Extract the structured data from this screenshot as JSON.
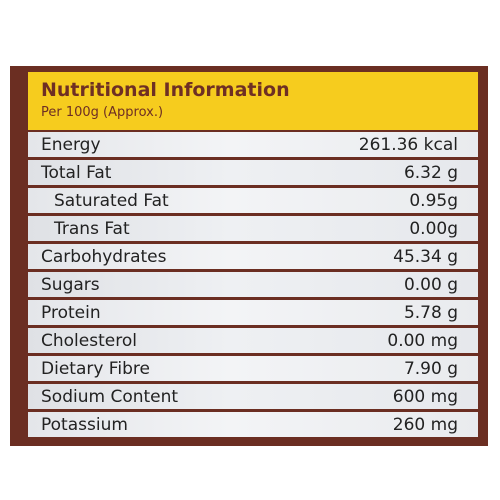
{
  "header": {
    "title": "Nutritional Information",
    "subtitle": "Per 100g (Approx.)"
  },
  "rows": [
    {
      "name": "Energy",
      "value": "261.36 kcal"
    },
    {
      "name": "Total Fat",
      "value": "6.32 g"
    },
    {
      "name": "Saturated Fat",
      "value": "0.95g"
    },
    {
      "name": "Trans Fat",
      "value": "0.00g"
    },
    {
      "name": "Carbohydrates",
      "value": "45.34 g"
    },
    {
      "name": "Sugars",
      "value": "0.00 g"
    },
    {
      "name": "Protein",
      "value": "5.78 g"
    },
    {
      "name": "Cholesterol",
      "value": "0.00 mg"
    },
    {
      "name": "Dietary Fibre",
      "value": "7.90 g"
    },
    {
      "name": "Sodium Content",
      "value": "600 mg"
    },
    {
      "name": "Potassium",
      "value": "260 mg"
    }
  ],
  "colors": {
    "border": "#6b2e22",
    "header_bg": "#f6cc1e",
    "header_text": "#6e2f24",
    "row_bg": "#e8eaee",
    "row_text": "#222222"
  }
}
